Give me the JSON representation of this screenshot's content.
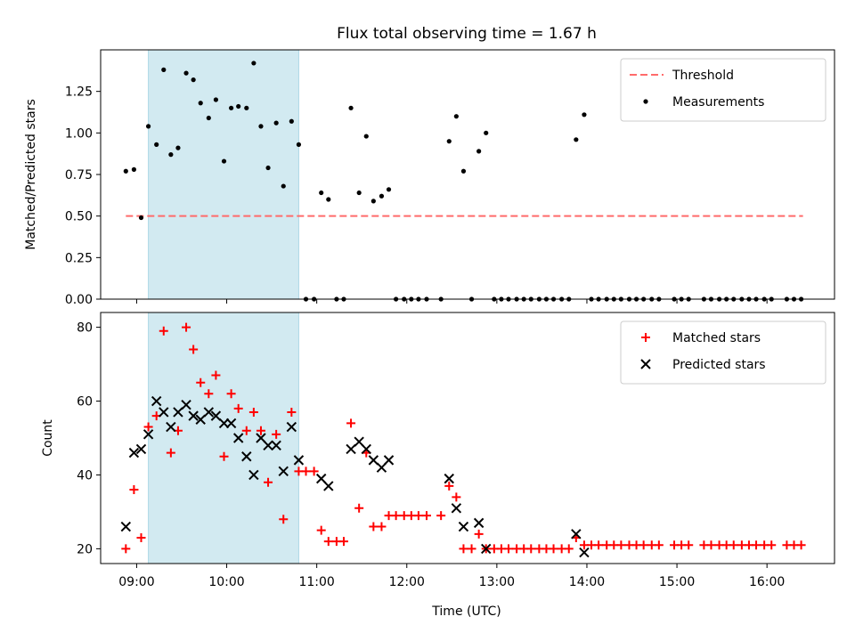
{
  "chart_data": [
    {
      "type": "scatter",
      "title": "Flux total observing time = 1.67 h",
      "xlabel": "",
      "ylabel": "Matched/Predicted stars",
      "ylim": [
        0,
        1.5
      ],
      "yticks": [
        "0.00",
        "0.25",
        "0.50",
        "0.75",
        "1.00",
        "1.25"
      ],
      "ytick_values": [
        0,
        0.25,
        0.5,
        0.75,
        1.0,
        1.25
      ],
      "x_unit": "hours UTC",
      "xlim": [
        8.6,
        16.75
      ],
      "shaded_span": [
        9.13,
        10.8
      ],
      "shaded_color": "#add8e6",
      "legend_position": "upper right",
      "series": [
        {
          "name": "Threshold",
          "kind": "line",
          "style": "dashed",
          "color": "#ff6b6b",
          "x": [
            8.88,
            16.4
          ],
          "y": [
            0.5,
            0.5
          ]
        },
        {
          "name": "Measurements",
          "kind": "dots",
          "color": "#000000",
          "x": [
            8.88,
            8.97,
            9.05,
            9.13,
            9.22,
            9.3,
            9.38,
            9.46,
            9.55,
            9.63,
            9.71,
            9.8,
            9.88,
            9.97,
            10.05,
            10.13,
            10.22,
            10.3,
            10.38,
            10.46,
            10.55,
            10.63,
            10.72,
            10.8,
            10.88,
            10.97,
            11.05,
            11.13,
            11.22,
            11.3,
            11.38,
            11.47,
            11.55,
            11.63,
            11.72,
            11.8,
            11.88,
            11.97,
            12.05,
            12.13,
            12.22,
            12.38,
            12.47,
            12.55,
            12.63,
            12.72,
            12.8,
            12.88,
            12.97,
            13.05,
            13.13,
            13.22,
            13.3,
            13.38,
            13.47,
            13.55,
            13.63,
            13.72,
            13.8,
            13.88,
            13.97,
            14.05,
            14.13,
            14.22,
            14.3,
            14.38,
            14.47,
            14.55,
            14.63,
            14.72,
            14.8,
            14.97,
            15.05,
            15.13,
            15.3,
            15.38,
            15.47,
            15.55,
            15.63,
            15.72,
            15.8,
            15.88,
            15.97,
            16.05,
            16.22,
            16.3,
            16.38
          ],
          "y": [
            0.77,
            0.78,
            0.49,
            1.04,
            0.93,
            1.38,
            0.87,
            0.91,
            1.36,
            1.32,
            1.18,
            1.09,
            1.2,
            0.83,
            1.15,
            1.16,
            1.15,
            1.42,
            1.04,
            0.79,
            1.06,
            0.68,
            1.07,
            0.93,
            0.0,
            0.0,
            0.64,
            0.6,
            0.0,
            0.0,
            1.15,
            0.64,
            0.98,
            0.59,
            0.62,
            0.66,
            0.0,
            0.0,
            0.0,
            0.0,
            0.0,
            0.0,
            0.95,
            1.1,
            0.77,
            0.0,
            0.89,
            1.0,
            0.0,
            0.0,
            0.0,
            0.0,
            0.0,
            0.0,
            0.0,
            0.0,
            0.0,
            0.0,
            0.0,
            0.96,
            1.11,
            0.0,
            0.0,
            0.0,
            0.0,
            0.0,
            0.0,
            0.0,
            0.0,
            0.0,
            0.0,
            0.0,
            0.0,
            0.0,
            0.0,
            0.0,
            0.0,
            0.0,
            0.0,
            0.0,
            0.0,
            0.0,
            0.0,
            0.0,
            0.0,
            0.0,
            0.0
          ]
        }
      ]
    },
    {
      "type": "scatter",
      "title": "",
      "xlabel": "Time (UTC)",
      "ylabel": "Count",
      "ylim": [
        16,
        84
      ],
      "yticks": [
        "20",
        "40",
        "60",
        "80"
      ],
      "ytick_values": [
        20,
        40,
        60,
        80
      ],
      "x_unit": "hours UTC",
      "xlim": [
        8.6,
        16.75
      ],
      "xticks": [
        "09:00",
        "10:00",
        "11:00",
        "12:00",
        "13:00",
        "14:00",
        "15:00",
        "16:00"
      ],
      "xtick_values": [
        9,
        10,
        11,
        12,
        13,
        14,
        15,
        16
      ],
      "shaded_span": [
        9.13,
        10.8
      ],
      "shaded_color": "#add8e6",
      "legend_position": "upper right",
      "series": [
        {
          "name": "Matched stars",
          "kind": "plus",
          "color": "#ff0000",
          "x": [
            8.88,
            8.97,
            9.05,
            9.13,
            9.22,
            9.3,
            9.38,
            9.46,
            9.55,
            9.63,
            9.71,
            9.8,
            9.88,
            9.97,
            10.05,
            10.13,
            10.22,
            10.3,
            10.38,
            10.46,
            10.55,
            10.63,
            10.72,
            10.8,
            10.88,
            10.97,
            11.05,
            11.13,
            11.22,
            11.3,
            11.38,
            11.47,
            11.55,
            11.63,
            11.72,
            11.8,
            11.88,
            11.97,
            12.05,
            12.13,
            12.22,
            12.38,
            12.47,
            12.55,
            12.63,
            12.72,
            12.8,
            12.88,
            12.97,
            13.05,
            13.13,
            13.22,
            13.3,
            13.38,
            13.47,
            13.55,
            13.63,
            13.72,
            13.8,
            13.88,
            13.97,
            14.05,
            14.13,
            14.22,
            14.3,
            14.38,
            14.47,
            14.55,
            14.63,
            14.72,
            14.8,
            14.97,
            15.05,
            15.13,
            15.3,
            15.38,
            15.47,
            15.55,
            15.63,
            15.72,
            15.8,
            15.88,
            15.97,
            16.05,
            16.22,
            16.3,
            16.38
          ],
          "y": [
            20,
            36,
            23,
            53,
            56,
            79,
            46,
            52,
            80,
            74,
            65,
            62,
            67,
            45,
            62,
            58,
            52,
            57,
            52,
            38,
            51,
            28,
            57,
            41,
            41,
            41,
            25,
            22,
            22,
            22,
            54,
            31,
            46,
            26,
            26,
            29,
            29,
            29,
            29,
            29,
            29,
            29,
            37,
            34,
            20,
            20,
            24,
            20,
            20,
            20,
            20,
            20,
            20,
            20,
            20,
            20,
            20,
            20,
            20,
            23,
            21,
            21,
            21,
            21,
            21,
            21,
            21,
            21,
            21,
            21,
            21,
            21,
            21,
            21,
            21,
            21,
            21,
            21,
            21,
            21,
            21,
            21,
            21,
            21,
            21,
            21,
            21
          ]
        },
        {
          "name": "Predicted stars",
          "kind": "cross",
          "color": "#000000",
          "x": [
            8.88,
            8.97,
            9.05,
            9.13,
            9.22,
            9.3,
            9.38,
            9.46,
            9.55,
            9.63,
            9.71,
            9.8,
            9.88,
            9.97,
            10.05,
            10.13,
            10.22,
            10.3,
            10.38,
            10.46,
            10.55,
            10.63,
            10.72,
            10.8,
            11.05,
            11.13,
            11.38,
            11.47,
            11.55,
            11.63,
            11.72,
            11.8,
            12.47,
            12.55,
            12.63,
            12.8,
            12.88,
            13.88,
            13.97
          ],
          "y": [
            26,
            46,
            47,
            51,
            60,
            57,
            53,
            57,
            59,
            56,
            55,
            57,
            56,
            54,
            54,
            50,
            45,
            40,
            50,
            48,
            48,
            41,
            53,
            44,
            39,
            37,
            47,
            49,
            47,
            44,
            42,
            44,
            39,
            31,
            26,
            27,
            20,
            24,
            19
          ]
        }
      ]
    }
  ]
}
